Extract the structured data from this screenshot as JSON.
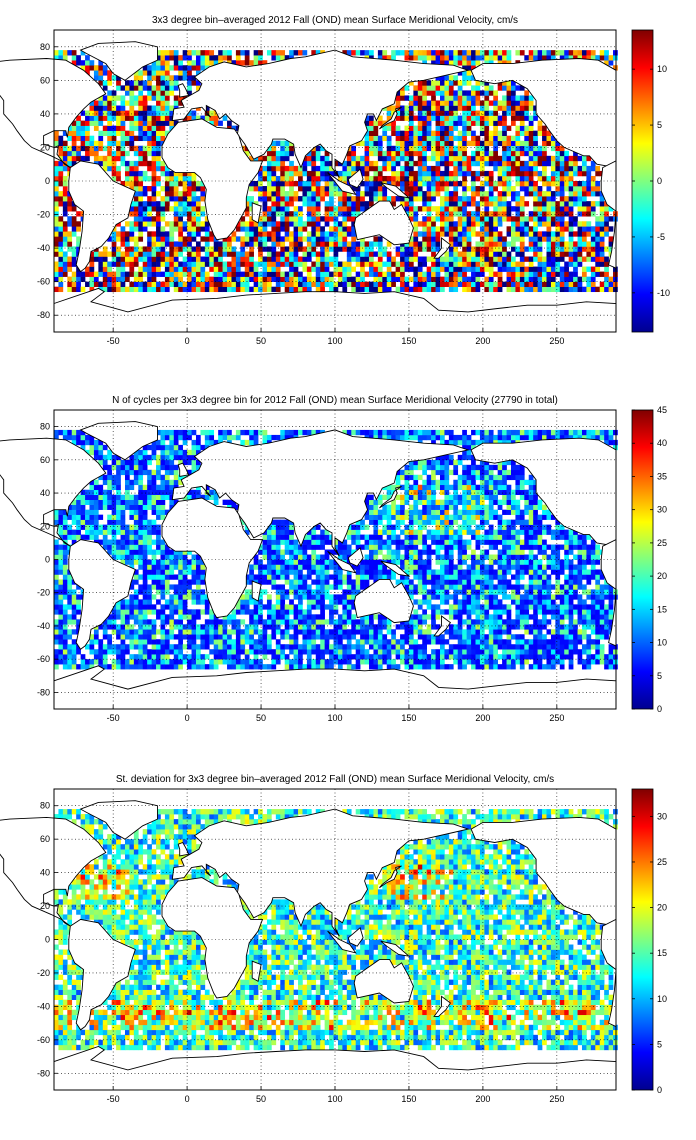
{
  "chart_data": [
    {
      "type": "heatmap",
      "title": "3x3 degree bin–averaged 2012 Fall (OND) mean Surface Meridional Velocity, cm/s",
      "xlim": [
        -90,
        290
      ],
      "ylim": [
        -90,
        90
      ],
      "x_ticks": [
        -50,
        0,
        50,
        100,
        150,
        200,
        250
      ],
      "y_ticks": [
        80,
        60,
        40,
        20,
        0,
        -20,
        -40,
        -60,
        -80
      ],
      "grid": true,
      "colorbar": {
        "ticks": [
          10,
          5,
          0,
          -5,
          -10
        ],
        "range": [
          -13.5,
          13.5
        ],
        "colormap": "jet"
      },
      "bin_size_deg": 3,
      "field": "velocity"
    },
    {
      "type": "heatmap",
      "title": "N of cycles per 3x3 degree bin for 2012 Fall (OND) mean Surface Meridional Velocity (27790 in total)",
      "xlim": [
        -90,
        290
      ],
      "ylim": [
        -90,
        90
      ],
      "x_ticks": [
        -50,
        0,
        50,
        100,
        150,
        200,
        250
      ],
      "y_ticks": [
        80,
        60,
        40,
        20,
        0,
        -20,
        -40,
        -60,
        -80
      ],
      "grid": true,
      "colorbar": {
        "ticks": [
          45,
          40,
          35,
          30,
          25,
          20,
          15,
          10,
          5,
          0
        ],
        "range": [
          0,
          45
        ],
        "colormap": "jet"
      },
      "bin_size_deg": 3,
      "field": "count"
    },
    {
      "type": "heatmap",
      "title": "St. deviation for 3x3 degree bin–averaged 2012 Fall (OND) mean Surface Meridional Velocity, cm/s",
      "xlim": [
        -90,
        290
      ],
      "ylim": [
        -90,
        90
      ],
      "x_ticks": [
        -50,
        0,
        50,
        100,
        150,
        200,
        250
      ],
      "y_ticks": [
        80,
        60,
        40,
        20,
        0,
        -20,
        -40,
        -60,
        -80
      ],
      "grid": true,
      "colorbar": {
        "ticks": [
          30,
          25,
          20,
          15,
          10,
          5,
          0
        ],
        "range": [
          0,
          33
        ],
        "colormap": "jet"
      },
      "bin_size_deg": 3,
      "field": "stdev"
    }
  ]
}
